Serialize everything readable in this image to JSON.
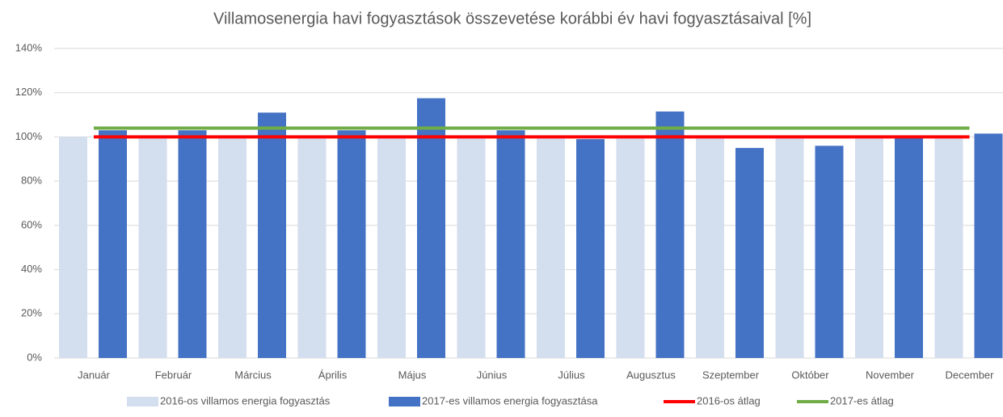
{
  "chart_data": {
    "type": "bar",
    "title": "Villamosenergia  havi fogyasztások összevetése korábbi év havi fogyasztásaival [%]",
    "categories": [
      "Január",
      "Február",
      "Március",
      "Április",
      "Május",
      "Június",
      "Július",
      "Augusztus",
      "Szeptember",
      "Október",
      "November",
      "December"
    ],
    "series": [
      {
        "name": "2016-os villamos energia fogyasztás",
        "type": "bar",
        "color": "#d3deef",
        "values": [
          100,
          100,
          100,
          100,
          100,
          100,
          100,
          100,
          100,
          100,
          100,
          100
        ]
      },
      {
        "name": "2017-es villamos energia fogyasztása",
        "type": "bar",
        "color": "#4472c4",
        "values": [
          103,
          103,
          111,
          103,
          117.5,
          103,
          99,
          111.5,
          95,
          96,
          100,
          101.5
        ]
      },
      {
        "name": "2016-os átlag",
        "type": "line",
        "color": "#ff0000",
        "values": [
          100,
          100,
          100,
          100,
          100,
          100,
          100,
          100,
          100,
          100,
          100,
          100
        ]
      },
      {
        "name": "2017-es átlag",
        "type": "line",
        "color": "#70ad47",
        "values": [
          104,
          104,
          104,
          104,
          104,
          104,
          104,
          104,
          104,
          104,
          104,
          104
        ]
      }
    ],
    "ylim": [
      0,
      140
    ],
    "yticks": [
      {
        "value": 0,
        "label": "0%"
      },
      {
        "value": 20,
        "label": "20%"
      },
      {
        "value": 40,
        "label": "40%"
      },
      {
        "value": 60,
        "label": "60%"
      },
      {
        "value": 80,
        "label": "80%"
      },
      {
        "value": 100,
        "label": "100%"
      },
      {
        "value": 120,
        "label": "120%"
      },
      {
        "value": 140,
        "label": "140%"
      }
    ],
    "grid": true,
    "legend": "bottom"
  }
}
